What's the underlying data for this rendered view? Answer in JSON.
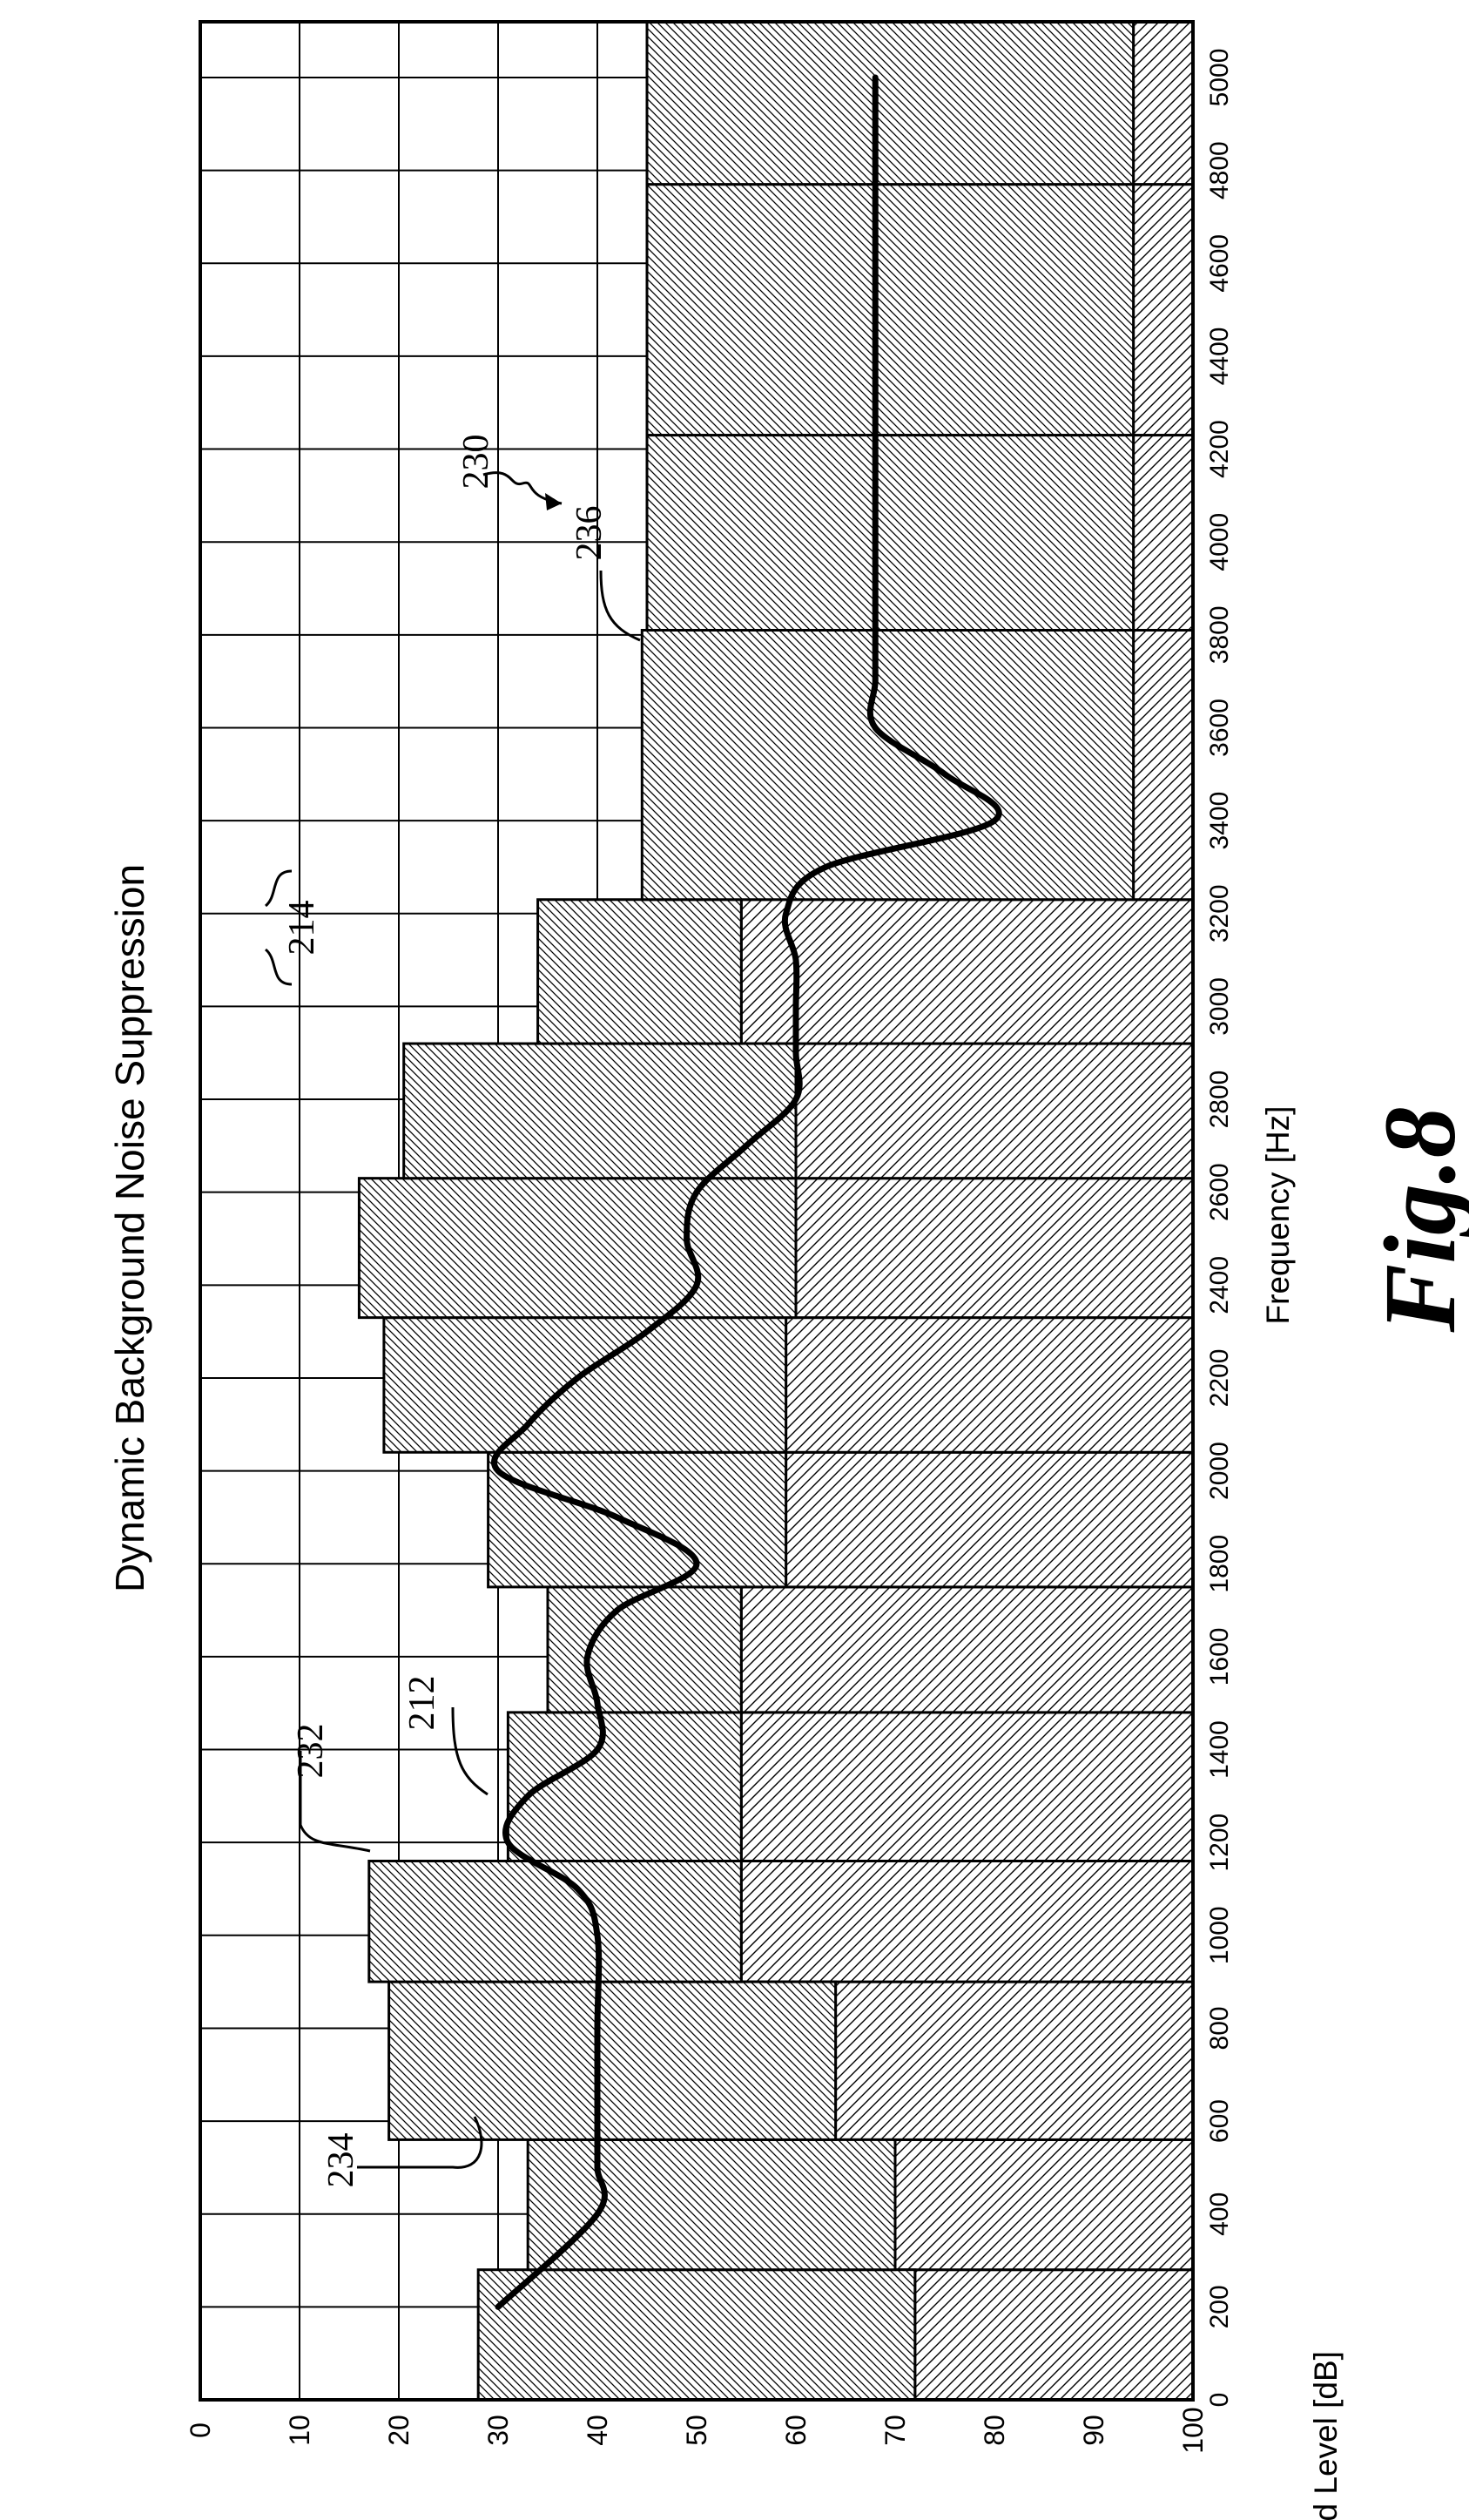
{
  "figure": {
    "title": "Dynamic Background Noise Suppression",
    "caption": "Fig.8",
    "ref_figure": "230"
  },
  "chart_data": {
    "type": "bar",
    "title": "Dynamic Background Noise Suppression",
    "xlabel": "Frequency [Hz]",
    "ylabel": "Sound Level [dB]",
    "xlim": [
      0,
      5120
    ],
    "ylim": [
      0,
      100
    ],
    "x_ticks": [
      0,
      200,
      400,
      600,
      800,
      1000,
      1200,
      1400,
      1600,
      1800,
      2000,
      2200,
      2400,
      2600,
      2800,
      3000,
      3200,
      3400,
      3600,
      3800,
      4000,
      4200,
      4400,
      4600,
      4800,
      5000
    ],
    "y_ticks": [
      0,
      10,
      20,
      30,
      40,
      50,
      60,
      70,
      80,
      90,
      100
    ],
    "grid": true,
    "y_axis_inverted": true,
    "series": [
      {
        "label": "232",
        "kind": "band_level",
        "bands": [
          {
            "x0": 0,
            "x1": 280,
            "value": 28
          },
          {
            "x0": 280,
            "x1": 560,
            "value": 33
          },
          {
            "x0": 560,
            "x1": 900,
            "value": 19
          },
          {
            "x0": 900,
            "x1": 1160,
            "value": 17
          },
          {
            "x0": 1160,
            "x1": 1480,
            "value": 31
          },
          {
            "x0": 1480,
            "x1": 1750,
            "value": 35
          },
          {
            "x0": 1750,
            "x1": 2040,
            "value": 29
          },
          {
            "x0": 2040,
            "x1": 2330,
            "value": 18.5
          },
          {
            "x0": 2330,
            "x1": 2630,
            "value": 16
          },
          {
            "x0": 2630,
            "x1": 2920,
            "value": 20.5
          },
          {
            "x0": 2920,
            "x1": 3230,
            "value": 34
          },
          {
            "x0": 3230,
            "x1": 3810,
            "value": 44.5
          },
          {
            "x0": 3810,
            "x1": 4230,
            "value": 45
          },
          {
            "x0": 4230,
            "x1": 4770,
            "value": 45
          },
          {
            "x0": 4770,
            "x1": 5120,
            "value": 45
          }
        ]
      },
      {
        "label": "234",
        "kind": "band_level",
        "bands": [
          {
            "x0": 0,
            "x1": 280,
            "value": 72
          },
          {
            "x0": 280,
            "x1": 560,
            "value": 70
          },
          {
            "x0": 560,
            "x1": 900,
            "value": 64
          },
          {
            "x0": 900,
            "x1": 1160,
            "value": 54.5
          },
          {
            "x0": 1160,
            "x1": 1480,
            "value": 54.5
          },
          {
            "x0": 1480,
            "x1": 1750,
            "value": 54.5
          },
          {
            "x0": 1750,
            "x1": 2040,
            "value": 59
          },
          {
            "x0": 2040,
            "x1": 2330,
            "value": 59
          },
          {
            "x0": 2330,
            "x1": 2630,
            "value": 60
          },
          {
            "x0": 2630,
            "x1": 2920,
            "value": 60
          },
          {
            "x0": 2920,
            "x1": 3230,
            "value": 54.5
          },
          {
            "x0": 3230,
            "x1": 3810,
            "value": 94
          },
          {
            "x0": 3810,
            "x1": 4230,
            "value": 94
          },
          {
            "x0": 4230,
            "x1": 4770,
            "value": 94
          },
          {
            "x0": 4770,
            "x1": 5120,
            "value": 94
          }
        ]
      },
      {
        "label": "212",
        "kind": "line",
        "x": [
          200,
          400,
          500,
          600,
          800,
          1000,
          1100,
          1200,
          1300,
          1400,
          1500,
          1600,
          1700,
          1800,
          1900,
          2000,
          2100,
          2200,
          2300,
          2400,
          2500,
          2600,
          2700,
          2800,
          2900,
          3000,
          3100,
          3200,
          3300,
          3400,
          3500,
          3600,
          3700,
          3800,
          4000,
          4200,
          4400,
          4600,
          4800,
          5000
        ],
        "y": [
          30,
          40,
          40,
          40,
          40,
          40,
          38,
          31,
          33,
          40,
          40,
          39,
          42,
          50,
          42,
          30,
          33,
          38,
          45,
          50,
          49,
          50,
          55,
          60,
          60,
          60,
          60,
          59,
          63,
          80,
          75,
          68,
          68,
          68,
          68,
          68,
          68,
          68,
          68,
          68
        ]
      }
    ],
    "annotations": [
      "214",
      "236"
    ]
  }
}
